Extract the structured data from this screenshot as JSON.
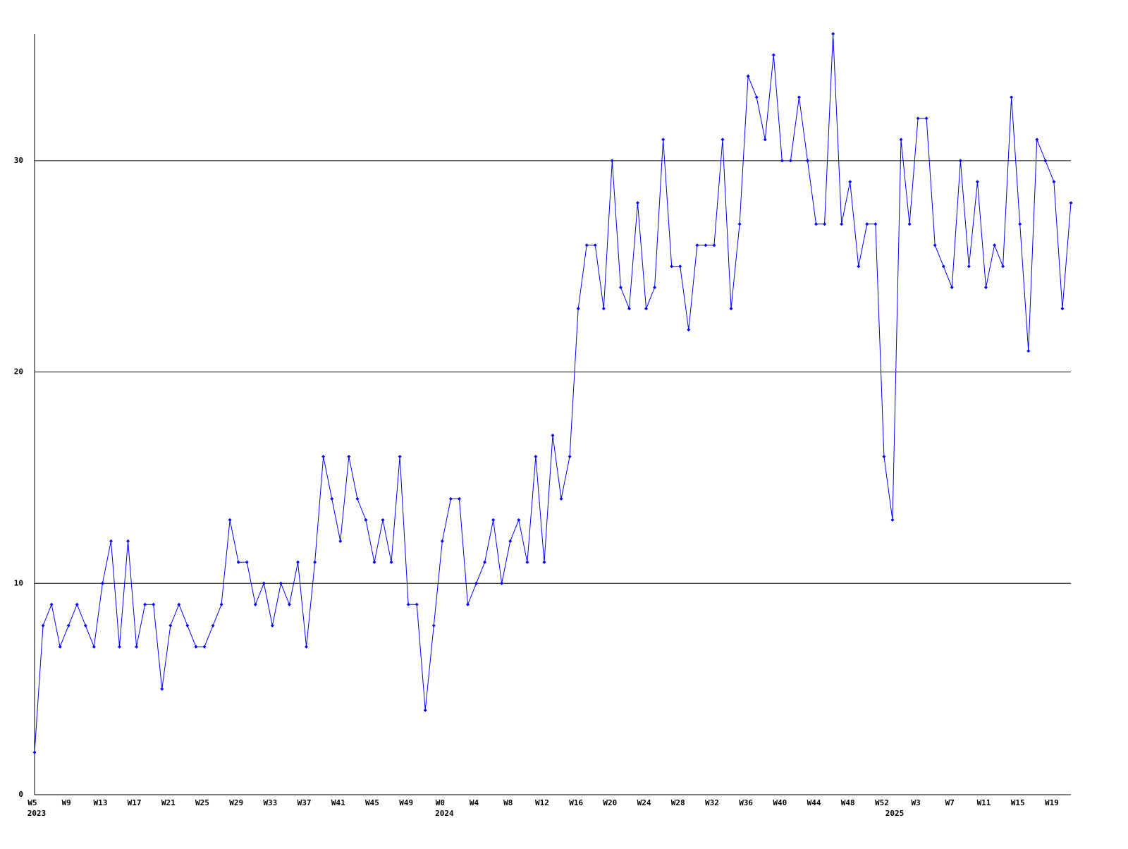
{
  "chart_data": {
    "type": "line",
    "categories": [
      "W5",
      null,
      null,
      null,
      "W9",
      null,
      null,
      null,
      "W13",
      null,
      null,
      null,
      "W17",
      null,
      null,
      null,
      "W21",
      null,
      null,
      null,
      "W25",
      null,
      null,
      null,
      "W29",
      null,
      null,
      null,
      "W33",
      null,
      null,
      null,
      "W37",
      null,
      null,
      null,
      "W41",
      null,
      null,
      null,
      "W45",
      null,
      null,
      null,
      "W49",
      null,
      null,
      null,
      "W0",
      null,
      null,
      null,
      "W4",
      null,
      null,
      null,
      "W8",
      null,
      null,
      null,
      "W12",
      null,
      null,
      null,
      "W16",
      null,
      null,
      null,
      "W20",
      null,
      null,
      null,
      "W24",
      null,
      null,
      null,
      "W28",
      null,
      null,
      null,
      "W32",
      null,
      null,
      null,
      "W36",
      null,
      null,
      null,
      "W40",
      null,
      null,
      null,
      "W44",
      null,
      null,
      null,
      "W48",
      null,
      null,
      null,
      "W52",
      null,
      null,
      null,
      "W3",
      null,
      null,
      null,
      "W7",
      null,
      null,
      null,
      "W11",
      null,
      null,
      null,
      "W15",
      null,
      null,
      null,
      "W19",
      null,
      null
    ],
    "year_labels": [
      "2023",
      null,
      null,
      null,
      null,
      null,
      null,
      null,
      null,
      null,
      null,
      null,
      null,
      null,
      null,
      null,
      null,
      null,
      null,
      null,
      null,
      null,
      null,
      null,
      null,
      null,
      null,
      null,
      null,
      null,
      null,
      null,
      null,
      null,
      null,
      null,
      null,
      null,
      null,
      null,
      null,
      null,
      null,
      null,
      null,
      null,
      null,
      null,
      "2024",
      null,
      null,
      null,
      null,
      null,
      null,
      null,
      null,
      null,
      null,
      null,
      null,
      null,
      null,
      null,
      null,
      null,
      null,
      null,
      null,
      null,
      null,
      null,
      null,
      null,
      null,
      null,
      null,
      null,
      null,
      null,
      null,
      null,
      null,
      null,
      null,
      null,
      null,
      null,
      null,
      null,
      null,
      null,
      null,
      null,
      null,
      null,
      null,
      null,
      null,
      null,
      null,
      "2025",
      null,
      null,
      null,
      null,
      null,
      null,
      null,
      null,
      null,
      null,
      null,
      null,
      null,
      null,
      null,
      null,
      null,
      null,
      null,
      null,
      null
    ],
    "values": [
      2,
      8,
      9,
      7,
      8,
      9,
      8,
      7,
      10,
      12,
      7,
      12,
      7,
      9,
      9,
      5,
      8,
      9,
      8,
      7,
      7,
      8,
      9,
      13,
      11,
      11,
      9,
      10,
      8,
      10,
      9,
      11,
      7,
      11,
      16,
      14,
      12,
      16,
      14,
      13,
      11,
      13,
      11,
      16,
      9,
      9,
      4,
      8,
      12,
      14,
      14,
      9,
      10,
      11,
      13,
      10,
      12,
      13,
      11,
      16,
      11,
      17,
      14,
      16,
      23,
      26,
      26,
      23,
      30,
      24,
      23,
      28,
      23,
      24,
      31,
      25,
      25,
      22,
      26,
      26,
      26,
      31,
      23,
      27,
      34,
      33,
      31,
      35,
      30,
      30,
      33,
      30,
      27,
      27,
      36,
      27,
      29,
      25,
      27,
      27,
      16,
      13,
      31,
      27,
      32,
      32,
      26,
      25,
      24,
      30,
      25,
      29,
      24,
      26,
      25,
      33,
      27,
      21,
      31,
      30,
      29,
      23,
      28
    ],
    "color": "#0000ff",
    "ylim": [
      0,
      36
    ],
    "yticks": [
      0,
      10,
      20,
      30
    ],
    "grid": true
  }
}
